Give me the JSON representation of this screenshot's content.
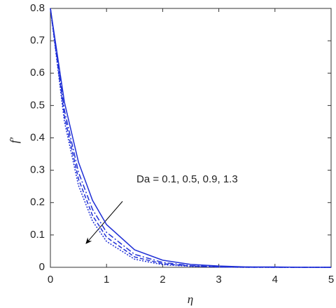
{
  "chart_data": {
    "type": "line",
    "xlabel": "η",
    "ylabel": "f′",
    "annotation": "Da = 0.1, 0.5, 0.9, 1.3",
    "xlim": [
      0,
      5
    ],
    "xticks": [
      0,
      1,
      2,
      3,
      4,
      5
    ],
    "ylim": [
      0,
      0.8
    ],
    "yticks": [
      0,
      0.1,
      0.2,
      0.3,
      0.4,
      0.5,
      0.6,
      0.7,
      0.8
    ],
    "x": [
      0,
      0.25,
      0.5,
      0.75,
      1,
      1.5,
      2,
      2.5,
      3,
      3.5,
      4,
      4.5,
      5
    ],
    "series": [
      {
        "color": "#1f2fd6",
        "dash": "solid",
        "values": [
          0.8,
          0.51,
          0.325,
          0.207,
          0.132,
          0.054,
          0.022,
          0.009,
          0.004,
          0.001,
          0.001,
          0,
          0
        ]
      },
      {
        "color": "#1f2fd6",
        "dash": "dashdot",
        "values": [
          0.8,
          0.485,
          0.294,
          0.179,
          0.108,
          0.04,
          0.015,
          0.005,
          0.002,
          0.001,
          0,
          0,
          0
        ]
      },
      {
        "color": "#1f2fd6",
        "dash": "dashed",
        "values": [
          0.8,
          0.467,
          0.273,
          0.16,
          0.093,
          0.032,
          0.011,
          0.004,
          0.001,
          0,
          0,
          0,
          0
        ]
      },
      {
        "color": "#1f2fd6",
        "dash": "dotted",
        "values": [
          0.8,
          0.45,
          0.253,
          0.143,
          0.08,
          0.025,
          0.008,
          0.003,
          0.001,
          0,
          0,
          0,
          0
        ]
      }
    ]
  }
}
